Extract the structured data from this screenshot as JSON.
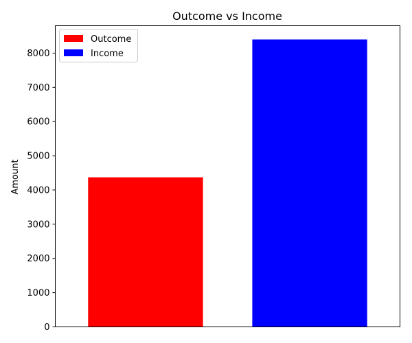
{
  "chart_data": {
    "type": "bar",
    "title": "Outcome vs Income",
    "xlabel": "",
    "ylabel": "Amount",
    "ylim": [
      0,
      8800
    ],
    "yticks": [
      0,
      1000,
      2000,
      3000,
      4000,
      5000,
      6000,
      7000,
      8000
    ],
    "x_ticks_labeled": false,
    "grid": false,
    "legend_position": "upper-left",
    "series": [
      {
        "name": "Outcome",
        "value": 4370,
        "color": "#ff0000"
      },
      {
        "name": "Income",
        "value": 8400,
        "color": "#0000ff"
      }
    ]
  }
}
